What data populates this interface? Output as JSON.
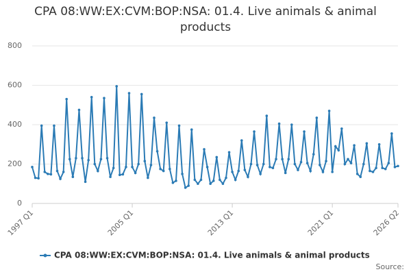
{
  "chart_data": {
    "type": "line",
    "title": "CPA 08:WW:EX:CVM:BOP:NSA: 01.4. Live animals & animal products",
    "source": "Source:",
    "categories": [
      "1997 Q1",
      null,
      null,
      null,
      null,
      null,
      null,
      null,
      null,
      null,
      null,
      null,
      null,
      null,
      null,
      null,
      null,
      null,
      null,
      null,
      null,
      null,
      null,
      null,
      null,
      null,
      null,
      null,
      null,
      null,
      null,
      null,
      "2005 Q1",
      null,
      null,
      null,
      null,
      null,
      null,
      null,
      null,
      null,
      null,
      null,
      null,
      null,
      null,
      null,
      null,
      null,
      null,
      null,
      null,
      null,
      null,
      null,
      null,
      null,
      null,
      null,
      null,
      null,
      null,
      null,
      "2013 Q1",
      null,
      null,
      null,
      null,
      null,
      null,
      null,
      null,
      null,
      null,
      null,
      null,
      null,
      null,
      null,
      null,
      null,
      null,
      null,
      null,
      null,
      null,
      null,
      null,
      null,
      null,
      null,
      null,
      null,
      null,
      null,
      "2021 Q1",
      null,
      null,
      null,
      null,
      null,
      null,
      null,
      null,
      null,
      null,
      null,
      null,
      null,
      null,
      null,
      null,
      null,
      null,
      null,
      null,
      "2026 Q2"
    ],
    "series": [
      {
        "name": "CPA 08:WW:EX:CVM:BOP:NSA: 01.4. Live animals & animal products",
        "color": "#2b7bb5",
        "values": [
          185,
          130,
          128,
          395,
          160,
          150,
          148,
          395,
          165,
          125,
          160,
          530,
          225,
          135,
          230,
          475,
          230,
          110,
          220,
          540,
          200,
          165,
          225,
          535,
          230,
          135,
          180,
          595,
          145,
          148,
          185,
          560,
          185,
          155,
          200,
          555,
          215,
          130,
          195,
          435,
          265,
          175,
          165,
          410,
          175,
          105,
          115,
          395,
          150,
          80,
          90,
          375,
          120,
          100,
          120,
          275,
          185,
          100,
          115,
          235,
          120,
          100,
          130,
          260,
          160,
          120,
          165,
          320,
          170,
          135,
          200,
          365,
          195,
          150,
          200,
          445,
          185,
          180,
          225,
          405,
          225,
          155,
          225,
          400,
          200,
          170,
          210,
          365,
          205,
          165,
          250,
          435,
          195,
          160,
          215,
          470,
          160,
          290,
          270,
          380,
          200,
          225,
          205,
          295,
          150,
          135,
          200,
          305,
          165,
          160,
          180,
          300,
          180,
          175,
          205,
          355,
          185,
          190
        ]
      }
    ],
    "ylim": [
      0,
      800
    ],
    "yticks": [
      0,
      200,
      400,
      600,
      800
    ],
    "grid": true
  }
}
